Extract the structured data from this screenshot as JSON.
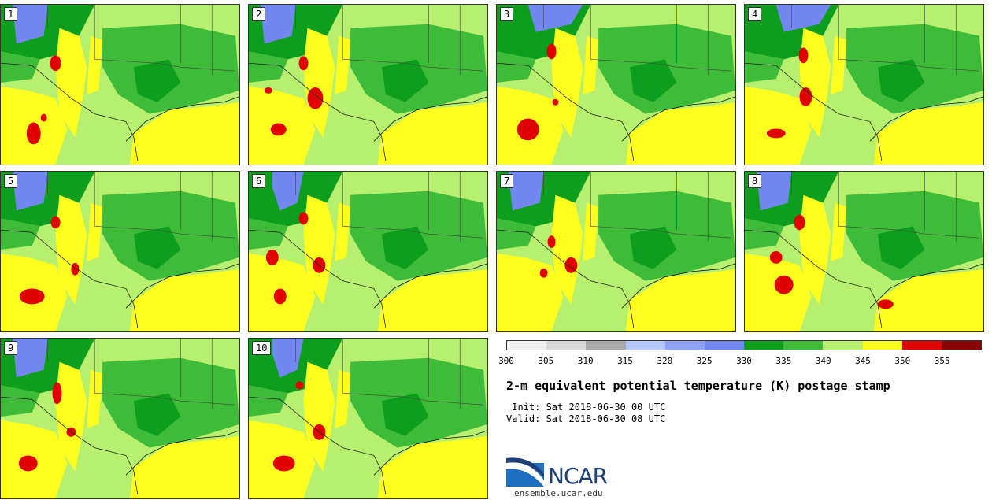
{
  "title": "2-m equivalent potential temperature (K) postage stamp",
  "init": " Init: Sat 2018-06-30 00 UTC",
  "valid": "Valid: Sat 2018-06-30 08 UTC",
  "logo_text": "NCAR",
  "site": "ensemble.ucar.edu",
  "members": [
    "1",
    "2",
    "3",
    "4",
    "5",
    "6",
    "7",
    "8",
    "9",
    "10"
  ],
  "colorbar": {
    "ticks": [
      "300",
      "305",
      "310",
      "315",
      "320",
      "325",
      "330",
      "335",
      "340",
      "345",
      "350",
      "355"
    ],
    "colors": [
      "#f0f0f0",
      "#d9d9d9",
      "#aaaaaa",
      "#b4c8ff",
      "#8ea3ff",
      "#7287f0",
      "#0d9e1e",
      "#3fbb3a",
      "#b7ef6f",
      "#ffff1f",
      "#e00000",
      "#8b0000"
    ]
  }
}
